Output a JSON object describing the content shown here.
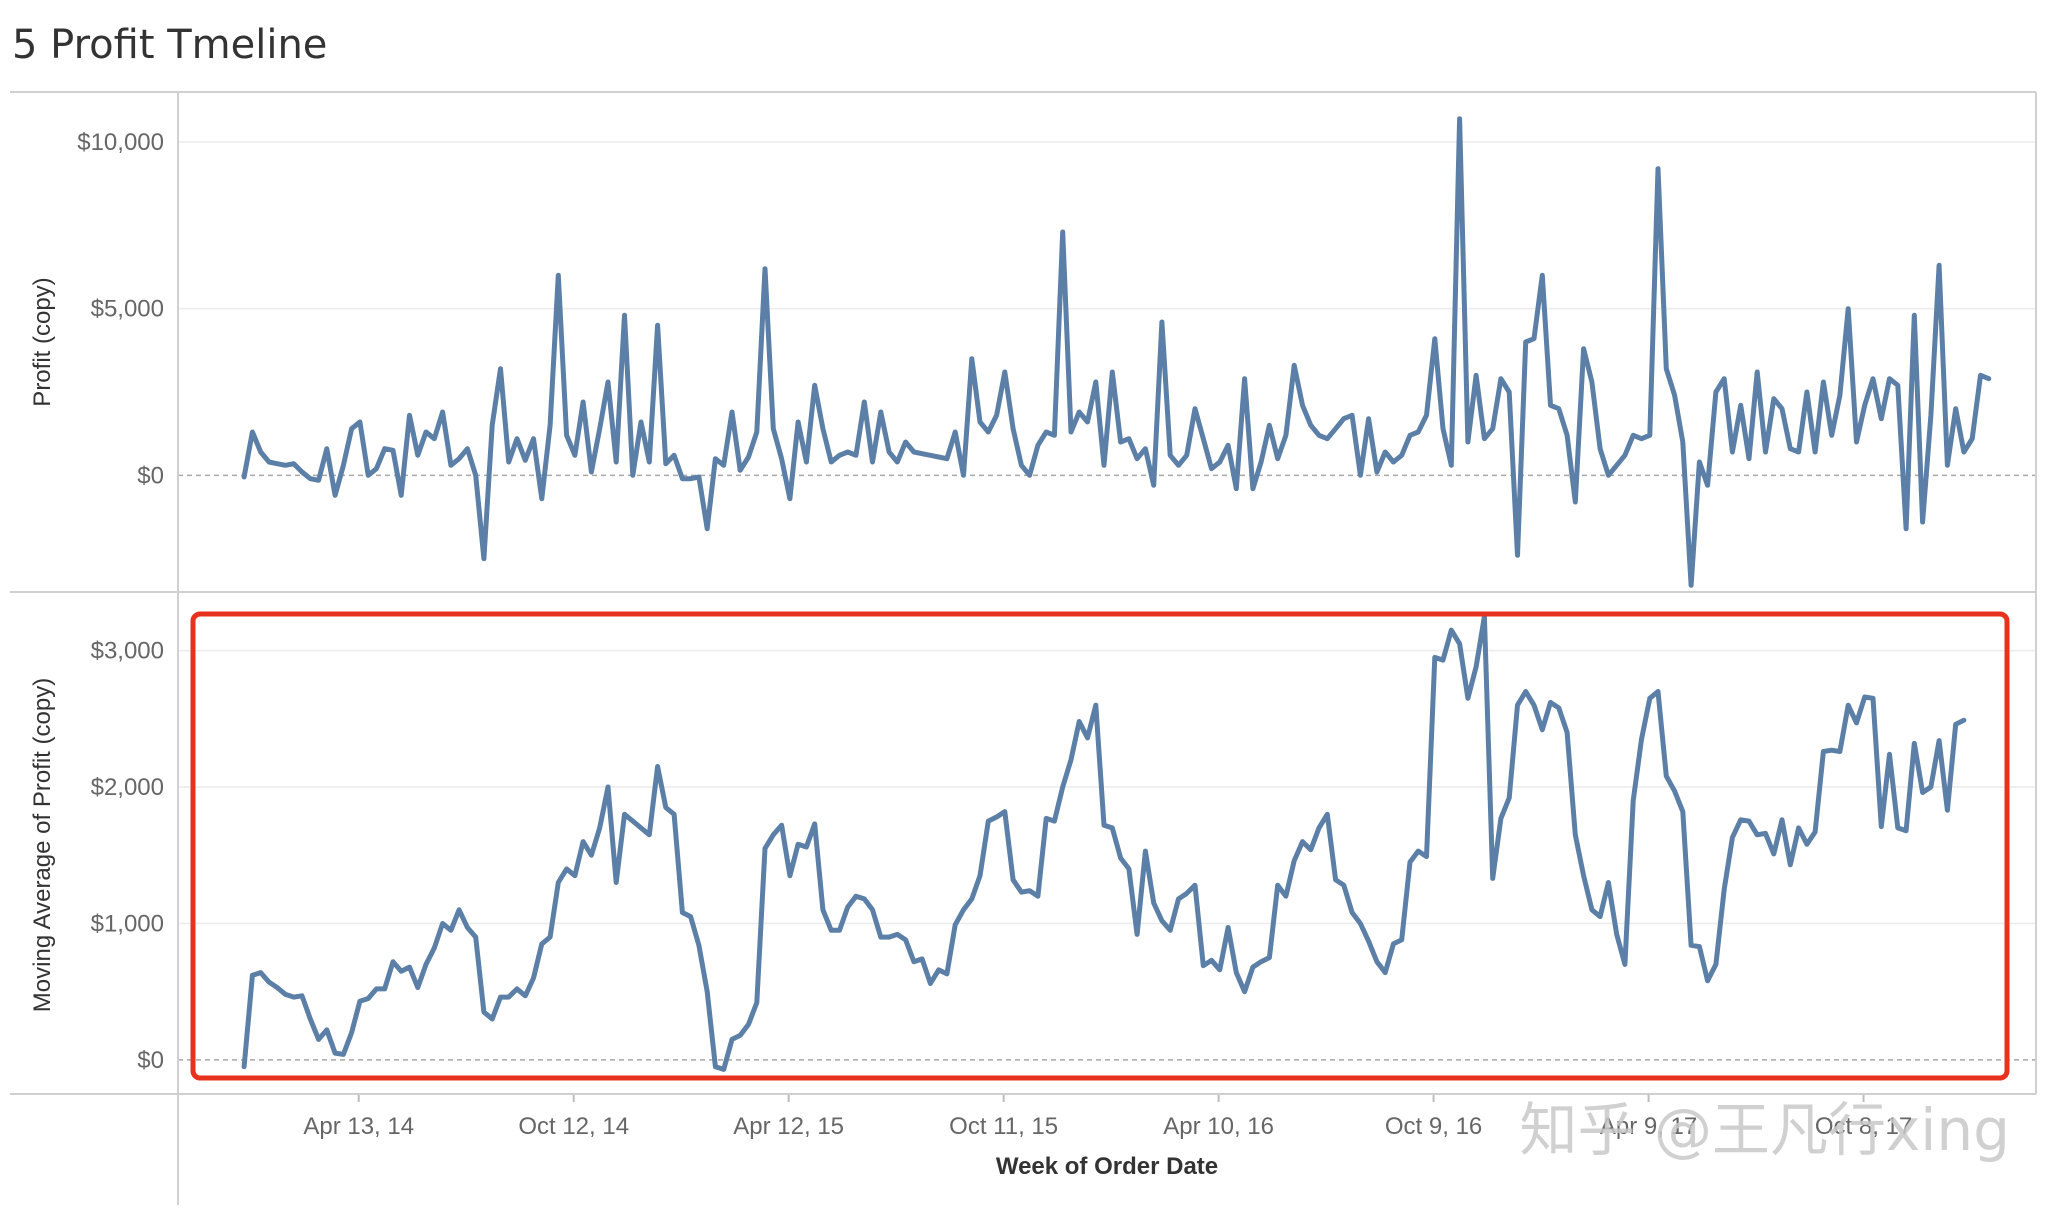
{
  "header": {
    "title": "5 Profit Tmeline"
  },
  "watermark": {
    "text": "知乎 @王凡行xing"
  },
  "colors": {
    "line": "#5b7fa6",
    "highlight": "#e8321e",
    "axis_text": "#666666",
    "pane_border": "#d0d0d0",
    "grid": "#ececec",
    "zero_line": "#a8a8a8",
    "watermark": "#c8c8c8"
  },
  "chart_data": [
    {
      "type": "line",
      "ylabel": "Profit (copy)",
      "ylim": [
        -3500,
        11500
      ],
      "yticks": [
        {
          "value": 0,
          "label": "$0"
        },
        {
          "value": 5000,
          "label": "$5,000"
        },
        {
          "value": 10000,
          "label": "$10,000"
        }
      ],
      "grid": true,
      "x_start": "2014-01-06",
      "x_step_days": 7,
      "series": [
        {
          "values": [
            -50,
            1300,
            700,
            400,
            350,
            300,
            350,
            100,
            -100,
            -150,
            800,
            -600,
            300,
            1400,
            1600,
            0,
            200,
            800,
            750,
            -600,
            1800,
            600,
            1300,
            1100,
            1900,
            300,
            500,
            800,
            0,
            -2500,
            1500,
            3200,
            400,
            1100,
            450,
            1100,
            -700,
            1500,
            6000,
            1200,
            600,
            2200,
            100,
            1400,
            2800,
            400,
            4800,
            0,
            1600,
            400,
            4500,
            350,
            600,
            -100,
            -100,
            -50,
            -1600,
            500,
            300,
            1900,
            150,
            550,
            1300,
            6200,
            1400,
            500,
            -700,
            1600,
            400,
            2700,
            1400,
            400,
            600,
            700,
            600,
            2200,
            400,
            1900,
            700,
            400,
            1000,
            700,
            650,
            600,
            550,
            500,
            1300,
            0,
            3500,
            1600,
            1300,
            1800,
            3100,
            1400,
            300,
            0,
            900,
            1300,
            1200,
            7300,
            1300,
            1900,
            1600,
            2800,
            300,
            3100,
            1000,
            1100,
            500,
            800,
            -300,
            4600,
            600,
            300,
            600,
            2000,
            1100,
            200,
            400,
            900,
            -400,
            2900,
            -400,
            400,
            1500,
            500,
            1200,
            3300,
            2100,
            1500,
            1200,
            1100,
            1400,
            1700,
            1800,
            0,
            1700,
            100,
            700,
            400,
            600,
            1200,
            1300,
            1800,
            4100,
            1400,
            300,
            10700,
            1000,
            3000,
            1100,
            1400,
            2900,
            2500,
            -2400,
            4000,
            4100,
            6000,
            2100,
            2000,
            1200,
            -800,
            3800,
            2800,
            800,
            0,
            300,
            600,
            1200,
            1100,
            1200,
            9200,
            3200,
            2400,
            1000,
            -3300,
            400,
            -300,
            2500,
            2900,
            700,
            2100,
            500,
            3100,
            700,
            2300,
            2000,
            800,
            700,
            2500,
            700,
            2800,
            1200,
            2400,
            5000,
            1000,
            2100,
            2900,
            1700,
            2900,
            2700,
            -1600,
            4800,
            -1400,
            1800,
            6300,
            300,
            2000,
            700,
            1100,
            3000,
            2900
          ]
        }
      ]
    },
    {
      "type": "line",
      "ylabel": "Moving Average of Profit (copy)",
      "ylim": [
        -250,
        3400
      ],
      "yticks": [
        {
          "value": 0,
          "label": "$0"
        },
        {
          "value": 1000,
          "label": "$1,000"
        },
        {
          "value": 2000,
          "label": "$2,000"
        },
        {
          "value": 3000,
          "label": "$3,000"
        }
      ],
      "grid": true,
      "highlighted": true,
      "xlabel": "Week of Order Date",
      "xticks": [
        {
          "date": "2014-04-13",
          "label": "Apr 13, 14"
        },
        {
          "date": "2014-10-12",
          "label": "Oct 12, 14"
        },
        {
          "date": "2015-04-12",
          "label": "Apr 12, 15"
        },
        {
          "date": "2015-10-11",
          "label": "Oct 11, 15"
        },
        {
          "date": "2016-04-10",
          "label": "Apr 10, 16"
        },
        {
          "date": "2016-10-09",
          "label": "Oct 9, 16"
        },
        {
          "date": "2017-04-09",
          "label": "Apr 9, 17"
        },
        {
          "date": "2017-10-08",
          "label": "Oct 8, 17"
        }
      ],
      "x_start": "2014-01-06",
      "x_step_days": 7,
      "series": [
        {
          "values": [
            -50,
            620,
            640,
            570,
            530,
            480,
            460,
            470,
            300,
            150,
            220,
            50,
            40,
            200,
            430,
            450,
            520,
            520,
            720,
            650,
            680,
            530,
            700,
            820,
            1000,
            950,
            1100,
            970,
            900,
            350,
            300,
            460,
            460,
            520,
            470,
            600,
            850,
            900,
            1300,
            1400,
            1350,
            1600,
            1500,
            1700,
            2000,
            1300,
            1800,
            1750,
            1700,
            1650,
            2150,
            1850,
            1800,
            1080,
            1050,
            840,
            500,
            -50,
            -70,
            150,
            180,
            260,
            420,
            1550,
            1650,
            1720,
            1350,
            1580,
            1560,
            1730,
            1100,
            950,
            950,
            1120,
            1200,
            1180,
            1100,
            900,
            900,
            920,
            880,
            720,
            740,
            560,
            660,
            630,
            990,
            1100,
            1180,
            1350,
            1750,
            1780,
            1820,
            1320,
            1230,
            1240,
            1200,
            1770,
            1750,
            2000,
            2200,
            2480,
            2360,
            2600,
            1720,
            1700,
            1480,
            1400,
            920,
            1530,
            1150,
            1020,
            950,
            1180,
            1220,
            1280,
            690,
            730,
            660,
            970,
            640,
            500,
            680,
            720,
            750,
            1280,
            1200,
            1460,
            1600,
            1540,
            1700,
            1800,
            1320,
            1280,
            1080,
            1000,
            870,
            720,
            640,
            850,
            880,
            1450,
            1530,
            1490,
            2950,
            2930,
            3150,
            3050,
            2650,
            2880,
            3250,
            1330,
            1770,
            1920,
            2600,
            2700,
            2600,
            2420,
            2620,
            2580,
            2400,
            1650,
            1350,
            1100,
            1050,
            1300,
            920,
            700,
            1900,
            2350,
            2650,
            2700,
            2080,
            1970,
            1820,
            840,
            830,
            580,
            700,
            1250,
            1630,
            1760,
            1750,
            1650,
            1660,
            1510,
            1760,
            1430,
            1700,
            1580,
            1670,
            2260,
            2270,
            2260,
            2600,
            2470,
            2660,
            2650,
            1710,
            2240,
            1700,
            1680,
            2320,
            1960,
            2000,
            2340,
            1830,
            2460,
            2490
          ]
        }
      ]
    }
  ]
}
